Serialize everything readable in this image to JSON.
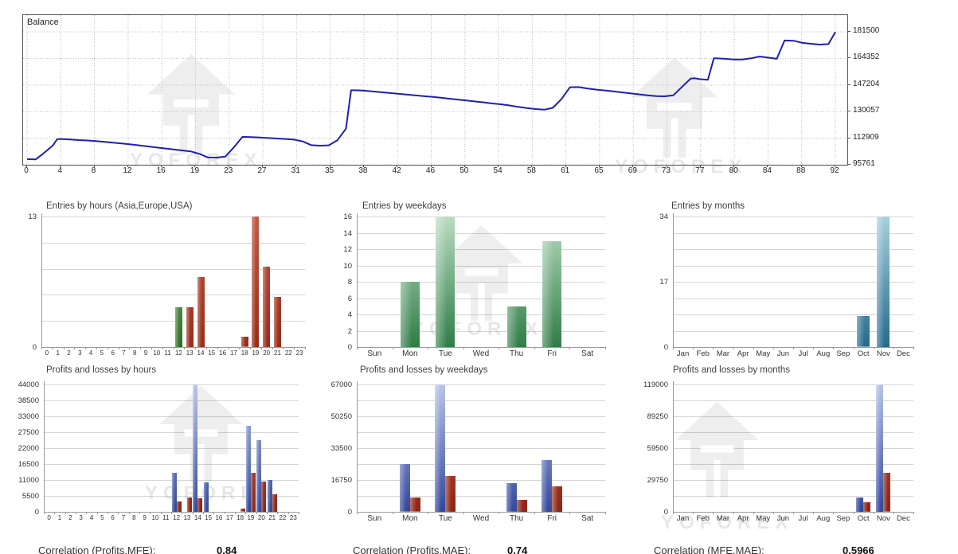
{
  "watermark": {
    "text": "YOFOREX"
  },
  "colors": {
    "balance_line": "#1f1fb4",
    "border": "#555555",
    "grid": "#d6d6d6",
    "axis": "#9a9a9a",
    "green": [
      "#b9dcc0",
      "#2f7c46"
    ],
    "hour_green": [
      "#8fc47f",
      "#2d6e22"
    ],
    "teal": [
      "#a6cfdd",
      "#256a8c"
    ],
    "blue": [
      "#b8c4e8",
      "#32479c"
    ],
    "red": [
      "#c9604a",
      "#8e2413"
    ],
    "hour_red": [
      "#c05a42",
      "#962c1a"
    ]
  },
  "chart_data": [
    {
      "id": "balance",
      "type": "line",
      "title": "Balance",
      "ylim": [
        95761,
        192300
      ],
      "y_ticks": [
        "181500",
        "164352",
        "147204",
        "130057",
        "112909",
        "95761"
      ],
      "x_tick_labels": [
        "0",
        "4",
        "8",
        "12",
        "16",
        "19",
        "23",
        "27",
        "31",
        "35",
        "38",
        "42",
        "46",
        "50",
        "54",
        "58",
        "61",
        "65",
        "69",
        "73",
        "77",
        "80",
        "84",
        "88",
        "92"
      ],
      "x_range": [
        0,
        93.8
      ],
      "series": [
        [
          0,
          99400
        ],
        [
          1,
          99200
        ],
        [
          2,
          103500
        ],
        [
          3,
          108300
        ],
        [
          3.5,
          112300
        ],
        [
          4,
          112300
        ],
        [
          5,
          112100
        ],
        [
          6,
          111700
        ],
        [
          7,
          111400
        ],
        [
          8,
          111000
        ],
        [
          9,
          110500
        ],
        [
          10,
          110000
        ],
        [
          11,
          109500
        ],
        [
          12,
          108900
        ],
        [
          13,
          108300
        ],
        [
          14,
          107600
        ],
        [
          15,
          106900
        ],
        [
          16,
          106300
        ],
        [
          17,
          105600
        ],
        [
          18,
          105000
        ],
        [
          19,
          104400
        ],
        [
          20,
          102800
        ],
        [
          21,
          100500
        ],
        [
          22,
          100400
        ],
        [
          23,
          101000
        ],
        [
          24,
          107000
        ],
        [
          25,
          113800
        ],
        [
          26,
          113600
        ],
        [
          27,
          113300
        ],
        [
          28,
          113000
        ],
        [
          29,
          112700
        ],
        [
          30,
          112400
        ],
        [
          31,
          112000
        ],
        [
          32,
          110800
        ],
        [
          33,
          108400
        ],
        [
          34,
          108100
        ],
        [
          35,
          108300
        ],
        [
          36,
          111500
        ],
        [
          37,
          119000
        ],
        [
          37.6,
          143800
        ],
        [
          38,
          143800
        ],
        [
          39,
          143600
        ],
        [
          40,
          143100
        ],
        [
          41,
          142600
        ],
        [
          42,
          142100
        ],
        [
          43,
          141600
        ],
        [
          44,
          141100
        ],
        [
          45,
          140600
        ],
        [
          46,
          140100
        ],
        [
          47,
          139600
        ],
        [
          48,
          139000
        ],
        [
          49,
          138400
        ],
        [
          50,
          137800
        ],
        [
          51,
          137200
        ],
        [
          52,
          136600
        ],
        [
          53,
          136000
        ],
        [
          54,
          135300
        ],
        [
          55,
          134800
        ],
        [
          56,
          134000
        ],
        [
          57,
          133100
        ],
        [
          58,
          132300
        ],
        [
          59,
          131700
        ],
        [
          60,
          131300
        ],
        [
          61,
          132500
        ],
        [
          62,
          138000
        ],
        [
          63,
          145800
        ],
        [
          64,
          145900
        ],
        [
          65,
          145000
        ],
        [
          66,
          144300
        ],
        [
          67,
          143700
        ],
        [
          68,
          143100
        ],
        [
          69,
          142500
        ],
        [
          70,
          141800
        ],
        [
          71,
          141200
        ],
        [
          72,
          140600
        ],
        [
          73,
          140100
        ],
        [
          74,
          139900
        ],
        [
          75,
          140600
        ],
        [
          76,
          146000
        ],
        [
          77,
          151300
        ],
        [
          77.5,
          151600
        ],
        [
          78,
          151000
        ],
        [
          79,
          150600
        ],
        [
          79.7,
          164400
        ],
        [
          80,
          164400
        ],
        [
          81,
          164100
        ],
        [
          82,
          163700
        ],
        [
          83,
          163700
        ],
        [
          84,
          164400
        ],
        [
          85,
          165600
        ],
        [
          86,
          164900
        ],
        [
          87,
          164100
        ],
        [
          87.9,
          175900
        ],
        [
          88,
          175900
        ],
        [
          89,
          175700
        ],
        [
          90,
          174400
        ],
        [
          91,
          173800
        ],
        [
          92,
          173300
        ],
        [
          93,
          173600
        ],
        [
          93.8,
          181400
        ]
      ]
    },
    {
      "id": "entries_hours",
      "type": "bar",
      "title": "Entries by hours (Asia,Europe,USA)",
      "categories": [
        "0",
        "1",
        "2",
        "3",
        "4",
        "5",
        "6",
        "7",
        "8",
        "9",
        "10",
        "11",
        "12",
        "13",
        "14",
        "15",
        "16",
        "17",
        "18",
        "19",
        "20",
        "21",
        "22",
        "23"
      ],
      "values": [
        0,
        0,
        0,
        0,
        0,
        0,
        0,
        0,
        0,
        0,
        0,
        0,
        4,
        4,
        7,
        0,
        0,
        0,
        1,
        13,
        8,
        5,
        0,
        0
      ],
      "color": "hour_red",
      "bar_colors": {
        "12": "hour_green"
      },
      "ylim": [
        0,
        13
      ],
      "grid_divisions": 5,
      "y_ticks": [
        "13",
        "0"
      ]
    },
    {
      "id": "entries_weekdays",
      "type": "bar",
      "title": "Entries by weekdays",
      "categories": [
        "Sun",
        "Mon",
        "Tue",
        "Wed",
        "Thu",
        "Fri",
        "Sat"
      ],
      "values": [
        0,
        8,
        16,
        0,
        5,
        13,
        0
      ],
      "color": "green",
      "ylim": [
        0,
        16
      ],
      "grid_divisions": 8,
      "y_ticks": [
        "16",
        "14",
        "12",
        "10",
        "8",
        "6",
        "4",
        "2",
        "0"
      ]
    },
    {
      "id": "entries_months",
      "type": "bar",
      "title": "Entries by months",
      "categories": [
        "Jan",
        "Feb",
        "Mar",
        "Apr",
        "May",
        "Jun",
        "Jul",
        "Aug",
        "Sep",
        "Oct",
        "Nov",
        "Dec"
      ],
      "values": [
        0,
        0,
        0,
        0,
        0,
        0,
        0,
        0,
        0,
        8,
        34,
        0
      ],
      "color": "teal",
      "ylim": [
        0,
        34
      ],
      "grid_divisions": 8,
      "y_ticks": [
        "34",
        "17",
        "0"
      ]
    },
    {
      "id": "pl_hours",
      "type": "grouped",
      "title": "Profits and losses by hours",
      "categories": [
        "0",
        "1",
        "2",
        "3",
        "4",
        "5",
        "6",
        "7",
        "8",
        "9",
        "10",
        "11",
        "12",
        "13",
        "14",
        "15",
        "16",
        "17",
        "18",
        "19",
        "20",
        "21",
        "22",
        "23"
      ],
      "series": [
        {
          "name": "Profits",
          "color": "blue",
          "values": [
            0,
            0,
            0,
            0,
            0,
            0,
            0,
            0,
            0,
            0,
            0,
            0,
            13500,
            0,
            44000,
            10200,
            0,
            0,
            0,
            29700,
            24800,
            11000,
            0,
            0
          ]
        },
        {
          "name": "Losses",
          "color": "red",
          "values": [
            0,
            0,
            0,
            0,
            0,
            0,
            0,
            0,
            0,
            0,
            0,
            0,
            3700,
            5000,
            4700,
            0,
            0,
            0,
            1000,
            13500,
            10600,
            6200,
            0,
            0
          ]
        }
      ],
      "ylim": [
        0,
        44000
      ],
      "grid_divisions": 8,
      "y_ticks": [
        "44000",
        "38500",
        "33000",
        "27500",
        "22000",
        "16500",
        "11000",
        "5500",
        "0"
      ]
    },
    {
      "id": "pl_weekdays",
      "type": "grouped",
      "title": "Profits and losses by weekdays",
      "categories": [
        "Sun",
        "Mon",
        "Tue",
        "Wed",
        "Thu",
        "Fri",
        "Sat"
      ],
      "series": [
        {
          "name": "Profits",
          "color": "blue",
          "values": [
            0,
            25000,
            67000,
            0,
            15000,
            27400,
            0
          ]
        },
        {
          "name": "Losses",
          "color": "red",
          "values": [
            0,
            7400,
            18800,
            0,
            6300,
            13400,
            0
          ]
        }
      ],
      "ylim": [
        0,
        67000
      ],
      "grid_divisions": 8,
      "y_ticks": [
        "67000",
        "50250",
        "33500",
        "16750",
        "0"
      ]
    },
    {
      "id": "pl_months",
      "type": "grouped",
      "title": "Profits and losses by months",
      "categories": [
        "Jan",
        "Feb",
        "Mar",
        "Apr",
        "May",
        "Jun",
        "Jul",
        "Aug",
        "Sep",
        "Oct",
        "Nov",
        "Dec"
      ],
      "series": [
        {
          "name": "Profits",
          "color": "blue",
          "values": [
            0,
            0,
            0,
            0,
            0,
            0,
            0,
            0,
            0,
            13700,
            119000,
            0
          ]
        },
        {
          "name": "Losses",
          "color": "red",
          "values": [
            0,
            0,
            0,
            0,
            0,
            0,
            0,
            0,
            0,
            8800,
            36200,
            0
          ]
        }
      ],
      "ylim": [
        0,
        119000
      ],
      "grid_divisions": 8,
      "y_ticks": [
        "119000",
        "89250",
        "59500",
        "29750",
        "0"
      ]
    }
  ],
  "correlations": [
    {
      "label": "Correlation (Profits,MFE):",
      "value": "0.84"
    },
    {
      "label": "Correlation (Profits,MAE):",
      "value": "0.74"
    },
    {
      "label": "Correlation (MFE,MAE):",
      "value": "0.5966"
    }
  ]
}
